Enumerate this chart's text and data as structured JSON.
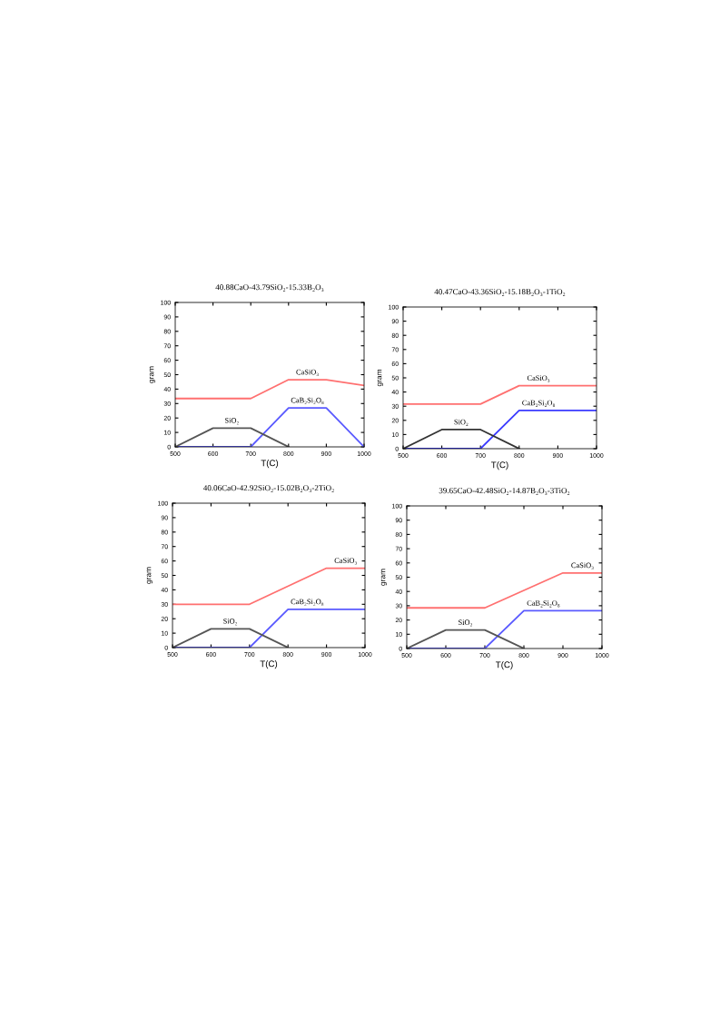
{
  "chart_data": [
    {
      "type": "line",
      "title": "40.88CaO-43.79SiO₂-15.33B₂O₃",
      "xlabel": "T(C)",
      "ylabel": "gram",
      "xlim": [
        500,
        1000
      ],
      "ylim": [
        0,
        100
      ],
      "xticks": [
        500,
        600,
        700,
        800,
        900,
        1000
      ],
      "yticks": [
        0,
        10,
        20,
        30,
        40,
        50,
        60,
        70,
        80,
        90,
        100
      ],
      "grid": false,
      "legend": false,
      "series": [
        {
          "name": "CaSiO₃",
          "color": "#ff7070",
          "x": [
            500,
            700,
            800,
            900,
            1000
          ],
          "values": [
            33.5,
            33.5,
            46.5,
            46.5,
            42.5
          ]
        },
        {
          "name": "CaB₂Si₂O₈",
          "color": "#5a5aff",
          "x": [
            500,
            700,
            800,
            900,
            1000
          ],
          "values": [
            0,
            0,
            27,
            27,
            0
          ]
        },
        {
          "name": "SiO₂",
          "color": "#555555",
          "x": [
            500,
            600,
            700,
            800
          ],
          "values": [
            0,
            13,
            13,
            0
          ]
        }
      ]
    },
    {
      "type": "line",
      "title": "40.47CaO-43.36SiO₂-15.18B₂O₃-1TiO₂",
      "xlabel": "T(C)",
      "ylabel": "gram",
      "xlim": [
        500,
        1000
      ],
      "ylim": [
        0,
        100
      ],
      "xticks": [
        500,
        600,
        700,
        800,
        900,
        1000
      ],
      "yticks": [
        0,
        10,
        20,
        30,
        40,
        50,
        60,
        70,
        80,
        90,
        100
      ],
      "grid": false,
      "legend": false,
      "series": [
        {
          "name": "CaSiO₃",
          "color": "#ff7070",
          "x": [
            500,
            700,
            800,
            1000
          ],
          "values": [
            31.5,
            31.5,
            44.5,
            44.5
          ]
        },
        {
          "name": "CaB₂Si₂O₈",
          "color": "#3a3aff",
          "x": [
            500,
            700,
            800,
            1000
          ],
          "values": [
            0,
            0,
            27,
            27
          ]
        },
        {
          "name": "SiO₂",
          "color": "#333333",
          "x": [
            500,
            600,
            700,
            800
          ],
          "values": [
            0,
            13.5,
            13.5,
            0
          ]
        }
      ]
    },
    {
      "type": "line",
      "title": "40.06CaO-42.92SiO₂-15.02B₂O₃-2TiO₂",
      "xlabel": "T(C)",
      "ylabel": "gram",
      "xlim": [
        500,
        1000
      ],
      "ylim": [
        0,
        100
      ],
      "xticks": [
        500,
        600,
        700,
        800,
        900,
        1000
      ],
      "yticks": [
        0,
        10,
        20,
        30,
        40,
        50,
        60,
        70,
        80,
        90,
        100
      ],
      "grid": false,
      "legend": false,
      "series": [
        {
          "name": "CaSiO₃",
          "color": "#ff7070",
          "x": [
            500,
            700,
            900,
            1000
          ],
          "values": [
            30,
            30,
            55,
            55
          ]
        },
        {
          "name": "CaB₂Si₂O₈",
          "color": "#5a5aff",
          "x": [
            500,
            700,
            800,
            1000
          ],
          "values": [
            0,
            0,
            26.5,
            26.5
          ]
        },
        {
          "name": "SiO₂",
          "color": "#555555",
          "x": [
            500,
            600,
            700,
            800
          ],
          "values": [
            0,
            13,
            13,
            0
          ]
        }
      ]
    },
    {
      "type": "line",
      "title": "39.65CaO-42.48SiO₂-14.87B₂O₃-3TiO₂",
      "xlabel": "T(C)",
      "ylabel": "gram",
      "xlim": [
        500,
        1000
      ],
      "ylim": [
        0,
        100
      ],
      "xticks": [
        500,
        600,
        700,
        800,
        900,
        1000
      ],
      "yticks": [
        0,
        10,
        20,
        30,
        40,
        50,
        60,
        70,
        80,
        90,
        100
      ],
      "grid": false,
      "legend": false,
      "series": [
        {
          "name": "CaSiO₃",
          "color": "#ff7070",
          "x": [
            500,
            700,
            900,
            1000
          ],
          "values": [
            28.5,
            28.5,
            53,
            53
          ]
        },
        {
          "name": "CaB₂Si₂O₈",
          "color": "#5a5aff",
          "x": [
            500,
            700,
            800,
            1000
          ],
          "values": [
            0,
            0,
            26.5,
            26.5
          ]
        },
        {
          "name": "SiO₂",
          "color": "#555555",
          "x": [
            500,
            600,
            700,
            800
          ],
          "values": [
            0,
            13,
            13,
            0
          ]
        }
      ]
    }
  ]
}
